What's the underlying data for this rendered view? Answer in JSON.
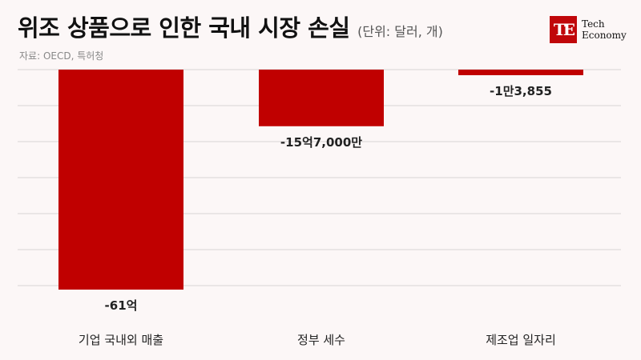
{
  "title": "위조 상품으로 인한 국내 시장 손실",
  "unit": "(단위: 달러, 개)",
  "source": "자료: OECD, 특허청",
  "logo": {
    "mark": "TE",
    "line1": "Tech",
    "line2": "Economy"
  },
  "colors": {
    "bar": "#c00000",
    "grid": "#d9d4d4",
    "background": "#fcf7f7"
  },
  "chart_data": {
    "type": "bar",
    "categories": [
      "기업 국내외 매출",
      "정부 세수",
      "제조업 일자리"
    ],
    "values": [
      -6100000000,
      -1570000000,
      -13855
    ],
    "data_labels": [
      "-61억",
      "-15억7,000만",
      "-1만3,855"
    ],
    "grid": true,
    "legend": "none",
    "note": "Each bar drawn on its own scale: 기업 매출 and 정부 세수 share a dollar scale (-61억 at full depth); 제조업 일자리 (count) is shown as a shallow bar"
  }
}
